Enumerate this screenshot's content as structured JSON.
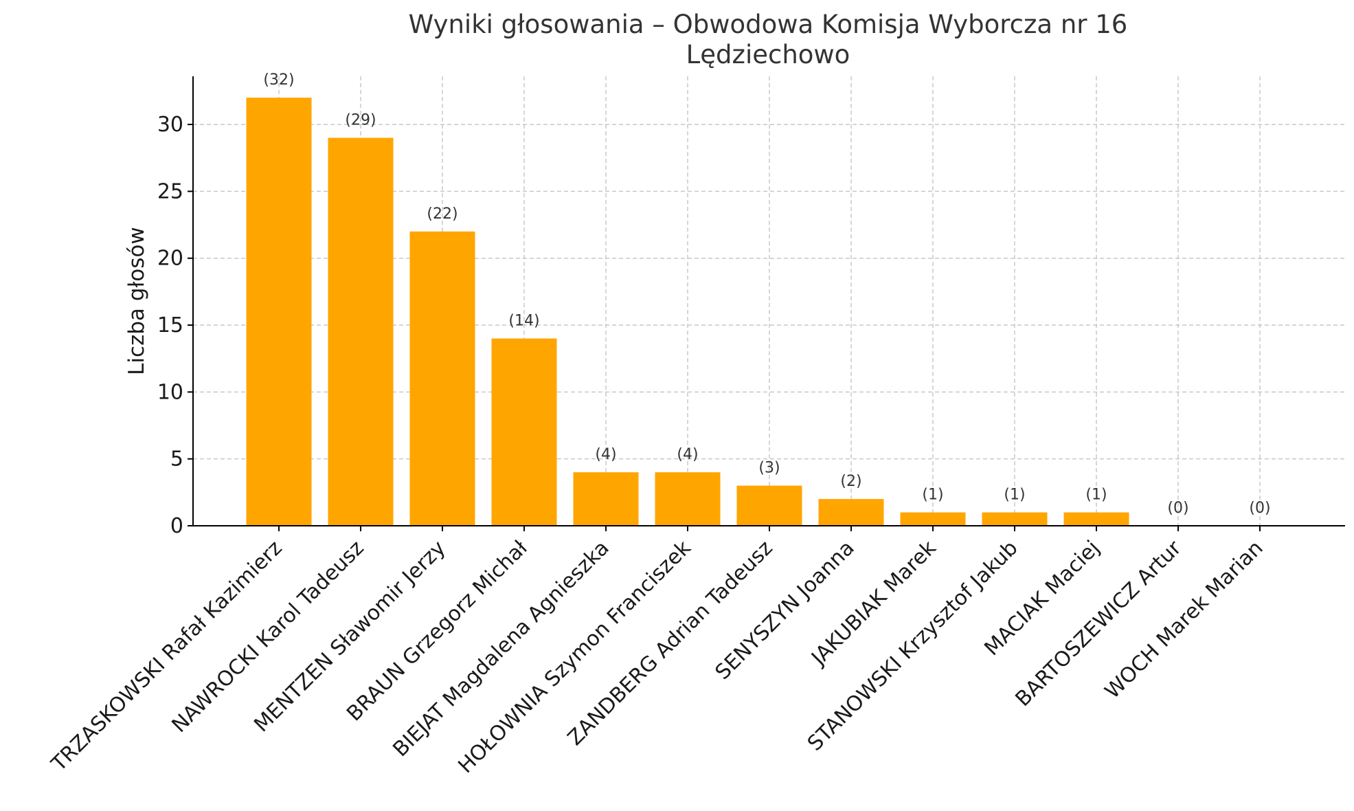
{
  "chart_data": {
    "type": "bar",
    "title": "Wyniki głosowania – Obwodowa Komisja Wyborcza nr 16",
    "subtitle": "Lędziechowo",
    "xlabel": "",
    "ylabel": "Liczba głosów",
    "ylim": [
      0,
      33.6
    ],
    "yticks": [
      0,
      5,
      10,
      15,
      20,
      25,
      30
    ],
    "grid": true,
    "bar_color": "#FFA500",
    "categories": [
      "TRZASKOWSKI Rafał Kazimierz",
      "NAWROCKI Karol Tadeusz",
      "MENTZEN Sławomir Jerzy",
      "BRAUN Grzegorz Michał",
      "BIEJAT Magdalena Agnieszka",
      "HOŁOWNIA Szymon Franciszek",
      "ZANDBERG Adrian Tadeusz",
      "SENYSZYN Joanna",
      "JAKUBIAK Marek",
      "STANOWSKI Krzysztof Jakub",
      "MACIAK Maciej",
      "BARTOSZEWICZ Artur",
      "WOCH Marek Marian"
    ],
    "values": [
      32,
      29,
      22,
      14,
      4,
      4,
      3,
      2,
      1,
      1,
      1,
      0,
      0
    ],
    "value_labels": [
      "(32)",
      "(29)",
      "(22)",
      "(14)",
      "(4)",
      "(4)",
      "(3)",
      "(2)",
      "(1)",
      "(1)",
      "(1)",
      "(0)",
      "(0)"
    ]
  }
}
